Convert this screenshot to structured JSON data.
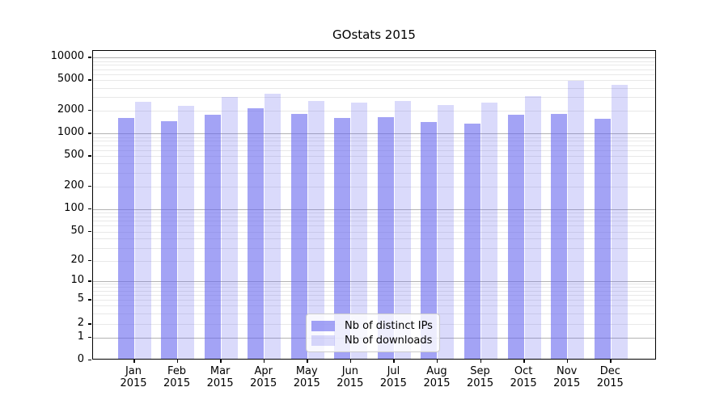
{
  "title": "GOstats 2015",
  "colors": {
    "bar_base": "102,102,238",
    "ips_bar": "rgba(102,102,238,0.6)",
    "downloads_bar": "rgba(102,102,238,0.24)",
    "major_grid": "#b3b3b3",
    "minor_grid": "#e8e8e8",
    "axis": "#000000",
    "legend_border": "#cccccc"
  },
  "legend": {
    "items": [
      {
        "label": "Nb of distinct IPs",
        "series": "ips"
      },
      {
        "label": "Nb of downloads",
        "series": "downloads"
      }
    ]
  },
  "chart_data": {
    "type": "bar",
    "title": "GOstats 2015",
    "categories": [
      "Jan 2015",
      "Feb 2015",
      "Mar 2015",
      "Apr 2015",
      "May 2015",
      "Jun 2015",
      "Jul 2015",
      "Aug 2015",
      "Sep 2015",
      "Oct 2015",
      "Nov 2015",
      "Dec 2015"
    ],
    "series": [
      {
        "name": "Nb of distinct IPs",
        "values": [
          1600,
          1450,
          1750,
          2150,
          1800,
          1600,
          1630,
          1400,
          1350,
          1750,
          1800,
          1550
        ]
      },
      {
        "name": "Nb of downloads",
        "values": [
          2600,
          2300,
          3000,
          3350,
          2700,
          2550,
          2650,
          2350,
          2550,
          3100,
          4950,
          4350
        ]
      }
    ],
    "xlabel": "",
    "ylabel": "",
    "yscale": "log (with 0 baseline)",
    "yticks": [
      0,
      1,
      2,
      5,
      10,
      20,
      50,
      100,
      200,
      500,
      1000,
      2000,
      5000,
      10000
    ],
    "ylim": [
      0,
      13000
    ],
    "grid": "horizontal major + minor log gridlines",
    "legend_position": "inside bottom-center"
  }
}
